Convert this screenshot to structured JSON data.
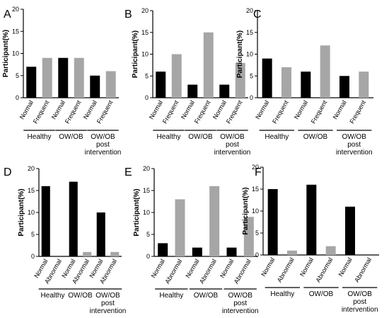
{
  "figure": {
    "panel_count": 6
  },
  "colors": {
    "dark_bar": "#000000",
    "light_bar": "#a6a6a6"
  },
  "chart_data": [
    {
      "panel": "A",
      "type": "bar",
      "ylabel": "Participant(%)",
      "ylim": [
        0,
        20
      ],
      "yticks": [
        "0",
        "5",
        "10",
        "15",
        "20"
      ],
      "categories": [
        "Normal",
        "Frequent",
        "Normal",
        "Frequent",
        "Normal",
        "Frequent"
      ],
      "values": [
        7,
        9,
        9,
        9,
        5,
        6
      ],
      "bar_colors": [
        "dark",
        "light",
        "dark",
        "light",
        "dark",
        "light"
      ],
      "groups": [
        {
          "label": "Healthy",
          "lines": [
            "Healthy"
          ]
        },
        {
          "label": "OW/OB",
          "lines": [
            "OW/OB"
          ]
        },
        {
          "label": "OW/OB post intervention",
          "lines": [
            "OW/OB",
            "post",
            "intervention"
          ]
        }
      ]
    },
    {
      "panel": "B",
      "type": "bar",
      "ylabel": "Participant(%)",
      "ylim": [
        0,
        20
      ],
      "yticks": [
        "0",
        "5",
        "10",
        "15",
        "20"
      ],
      "categories": [
        "Normal",
        "Frequent",
        "Normal",
        "Frequent",
        "Normal",
        "Frequent"
      ],
      "values": [
        6,
        10,
        3,
        15,
        3,
        8
      ],
      "bar_colors": [
        "dark",
        "light",
        "dark",
        "light",
        "dark",
        "light"
      ],
      "groups": [
        {
          "label": "Healthy",
          "lines": [
            "Healthy"
          ]
        },
        {
          "label": "OW/OB",
          "lines": [
            "OW/OB"
          ]
        },
        {
          "label": "OW/OB post intervention",
          "lines": [
            "OW/OB",
            "post",
            "intervention"
          ]
        }
      ]
    },
    {
      "panel": "C",
      "type": "bar",
      "ylabel": "Participant(%)",
      "ylim": [
        0,
        20
      ],
      "yticks": [
        "0",
        "5",
        "10",
        "15",
        "20"
      ],
      "categories": [
        "Normal",
        "Frequent",
        "Normal",
        "Frequent",
        "Normal",
        "Frequent"
      ],
      "values": [
        9,
        7,
        6,
        12,
        5,
        6
      ],
      "bar_colors": [
        "dark",
        "light",
        "dark",
        "light",
        "dark",
        "light"
      ],
      "groups": [
        {
          "label": "Healthy",
          "lines": [
            "Healthy"
          ]
        },
        {
          "label": "OW/OB",
          "lines": [
            "OW/OB"
          ]
        },
        {
          "label": "OW/OB post intervention",
          "lines": [
            "OW/OB",
            "post",
            "intervention"
          ]
        }
      ]
    },
    {
      "panel": "D",
      "type": "bar",
      "ylabel": "Participant(%)",
      "ylim": [
        0,
        20
      ],
      "yticks": [
        "0",
        "5",
        "10",
        "15",
        "20"
      ],
      "categories": [
        "Normal",
        "Abnormal",
        "Normal",
        "Abnormal",
        "Normal",
        "Abnormal"
      ],
      "values": [
        16,
        0,
        17,
        1,
        10,
        1
      ],
      "bar_colors": [
        "dark",
        "light",
        "dark",
        "light",
        "dark",
        "light"
      ],
      "groups": [
        {
          "label": "Healthy",
          "lines": [
            "Healthy"
          ]
        },
        {
          "label": "OW/OB",
          "lines": [
            "OW/OB"
          ]
        },
        {
          "label": "OW/OB post intervention",
          "lines": [
            "OW/OB",
            "post",
            "intervention"
          ]
        }
      ]
    },
    {
      "panel": "E",
      "type": "bar",
      "ylabel": "Participant(%)",
      "ylim": [
        0,
        20
      ],
      "yticks": [
        "0",
        "5",
        "10",
        "15",
        "20"
      ],
      "categories": [
        "Normal",
        "Abnormal",
        "Normal",
        "Abnormal",
        "Normal",
        "Abnormal"
      ],
      "values": [
        3,
        13,
        2,
        16,
        2,
        9
      ],
      "bar_colors": [
        "dark",
        "light",
        "dark",
        "light",
        "dark",
        "light"
      ],
      "groups": [
        {
          "label": "Healthy",
          "lines": [
            "Healthy"
          ]
        },
        {
          "label": "OW/OB",
          "lines": [
            "OW/OB"
          ]
        },
        {
          "label": "OW/OB post intervention",
          "lines": [
            "OW/OB",
            "post",
            "intervention"
          ]
        }
      ]
    },
    {
      "panel": "F",
      "type": "bar",
      "ylabel": "Participant(%)",
      "ylim": [
        0,
        20
      ],
      "yticks": [
        "0",
        "5",
        "10",
        "15",
        "20"
      ],
      "categories": [
        "Normal",
        "Abnormal",
        "Normal",
        "Abnormal",
        "Normal",
        "Abnormal"
      ],
      "values": [
        15,
        1,
        16,
        2,
        11,
        0
      ],
      "bar_colors": [
        "dark",
        "light",
        "dark",
        "light",
        "dark",
        "light"
      ],
      "groups": [
        {
          "label": "Healthy",
          "lines": [
            "Healthy"
          ]
        },
        {
          "label": "OW/OB",
          "lines": [
            "OW/OB"
          ]
        },
        {
          "label": "OW/OB post intervention",
          "lines": [
            "OW/OB",
            "post",
            "intervention"
          ]
        }
      ]
    }
  ]
}
